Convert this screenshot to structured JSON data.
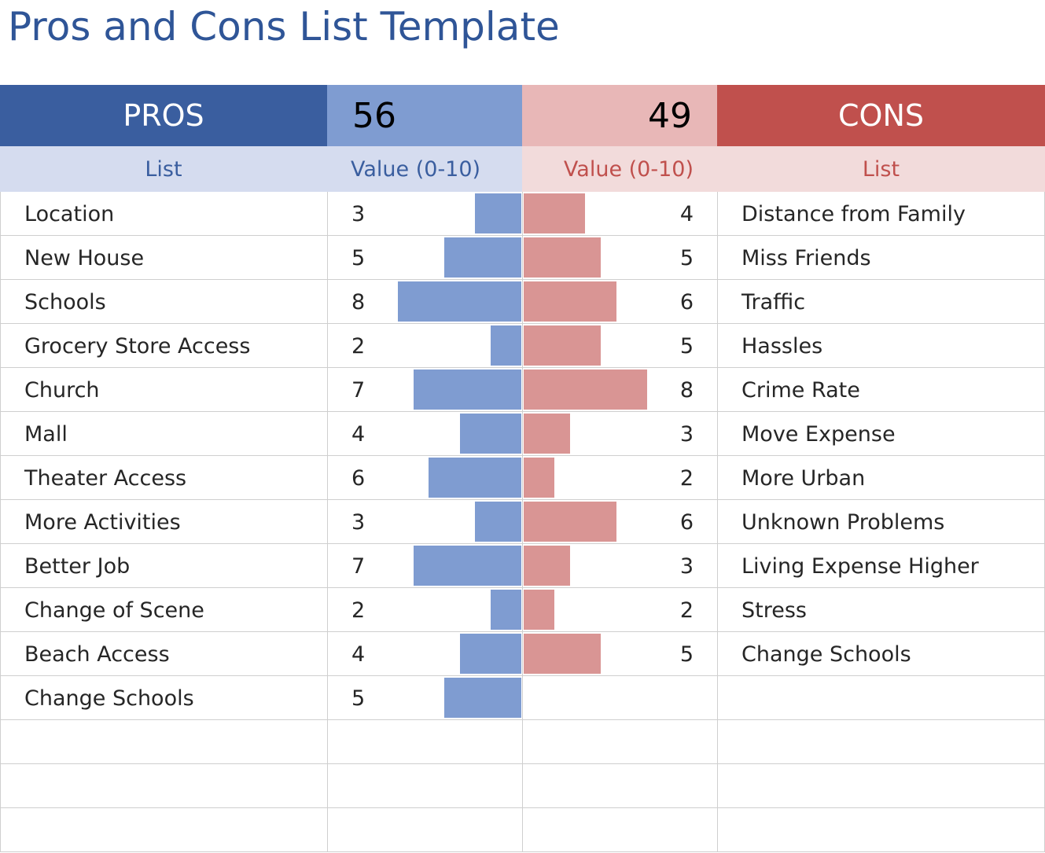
{
  "title": "Pros and Cons List Template",
  "header": {
    "pros_label": "PROS",
    "pros_total": "56",
    "cons_total": "49",
    "cons_label": "CONS"
  },
  "subheader": {
    "pros_list": "List",
    "pros_value": "Value (0-10)",
    "cons_value": "Value (0-10)",
    "cons_list": "List"
  },
  "colors": {
    "pros_accent": "#3a5e9f",
    "pros_bar": "#7f9cd1",
    "cons_accent": "#c0504d",
    "cons_bar": "#d99594"
  },
  "value_max": 10,
  "rows": [
    {
      "pro": "Location",
      "pro_value": 3,
      "con_value": 4,
      "con": "Distance from Family"
    },
    {
      "pro": "New House",
      "pro_value": 5,
      "con_value": 5,
      "con": "Miss Friends"
    },
    {
      "pro": "Schools",
      "pro_value": 8,
      "con_value": 6,
      "con": "Traffic"
    },
    {
      "pro": "Grocery Store Access",
      "pro_value": 2,
      "con_value": 5,
      "con": "Hassles"
    },
    {
      "pro": "Church",
      "pro_value": 7,
      "con_value": 8,
      "con": "Crime Rate"
    },
    {
      "pro": "Mall",
      "pro_value": 4,
      "con_value": 3,
      "con": "Move Expense"
    },
    {
      "pro": "Theater Access",
      "pro_value": 6,
      "con_value": 2,
      "con": "More Urban"
    },
    {
      "pro": "More Activities",
      "pro_value": 3,
      "con_value": 6,
      "con": "Unknown Problems"
    },
    {
      "pro": "Better Job",
      "pro_value": 7,
      "con_value": 3,
      "con": "Living Expense Higher"
    },
    {
      "pro": "Change of Scene",
      "pro_value": 2,
      "con_value": 2,
      "con": "Stress"
    },
    {
      "pro": "Beach Access",
      "pro_value": 4,
      "con_value": 5,
      "con": "Change Schools"
    },
    {
      "pro": "Change Schools",
      "pro_value": 5,
      "con_value": null,
      "con": ""
    },
    {
      "pro": "",
      "pro_value": null,
      "con_value": null,
      "con": ""
    },
    {
      "pro": "",
      "pro_value": null,
      "con_value": null,
      "con": ""
    },
    {
      "pro": "",
      "pro_value": null,
      "con_value": null,
      "con": ""
    }
  ]
}
